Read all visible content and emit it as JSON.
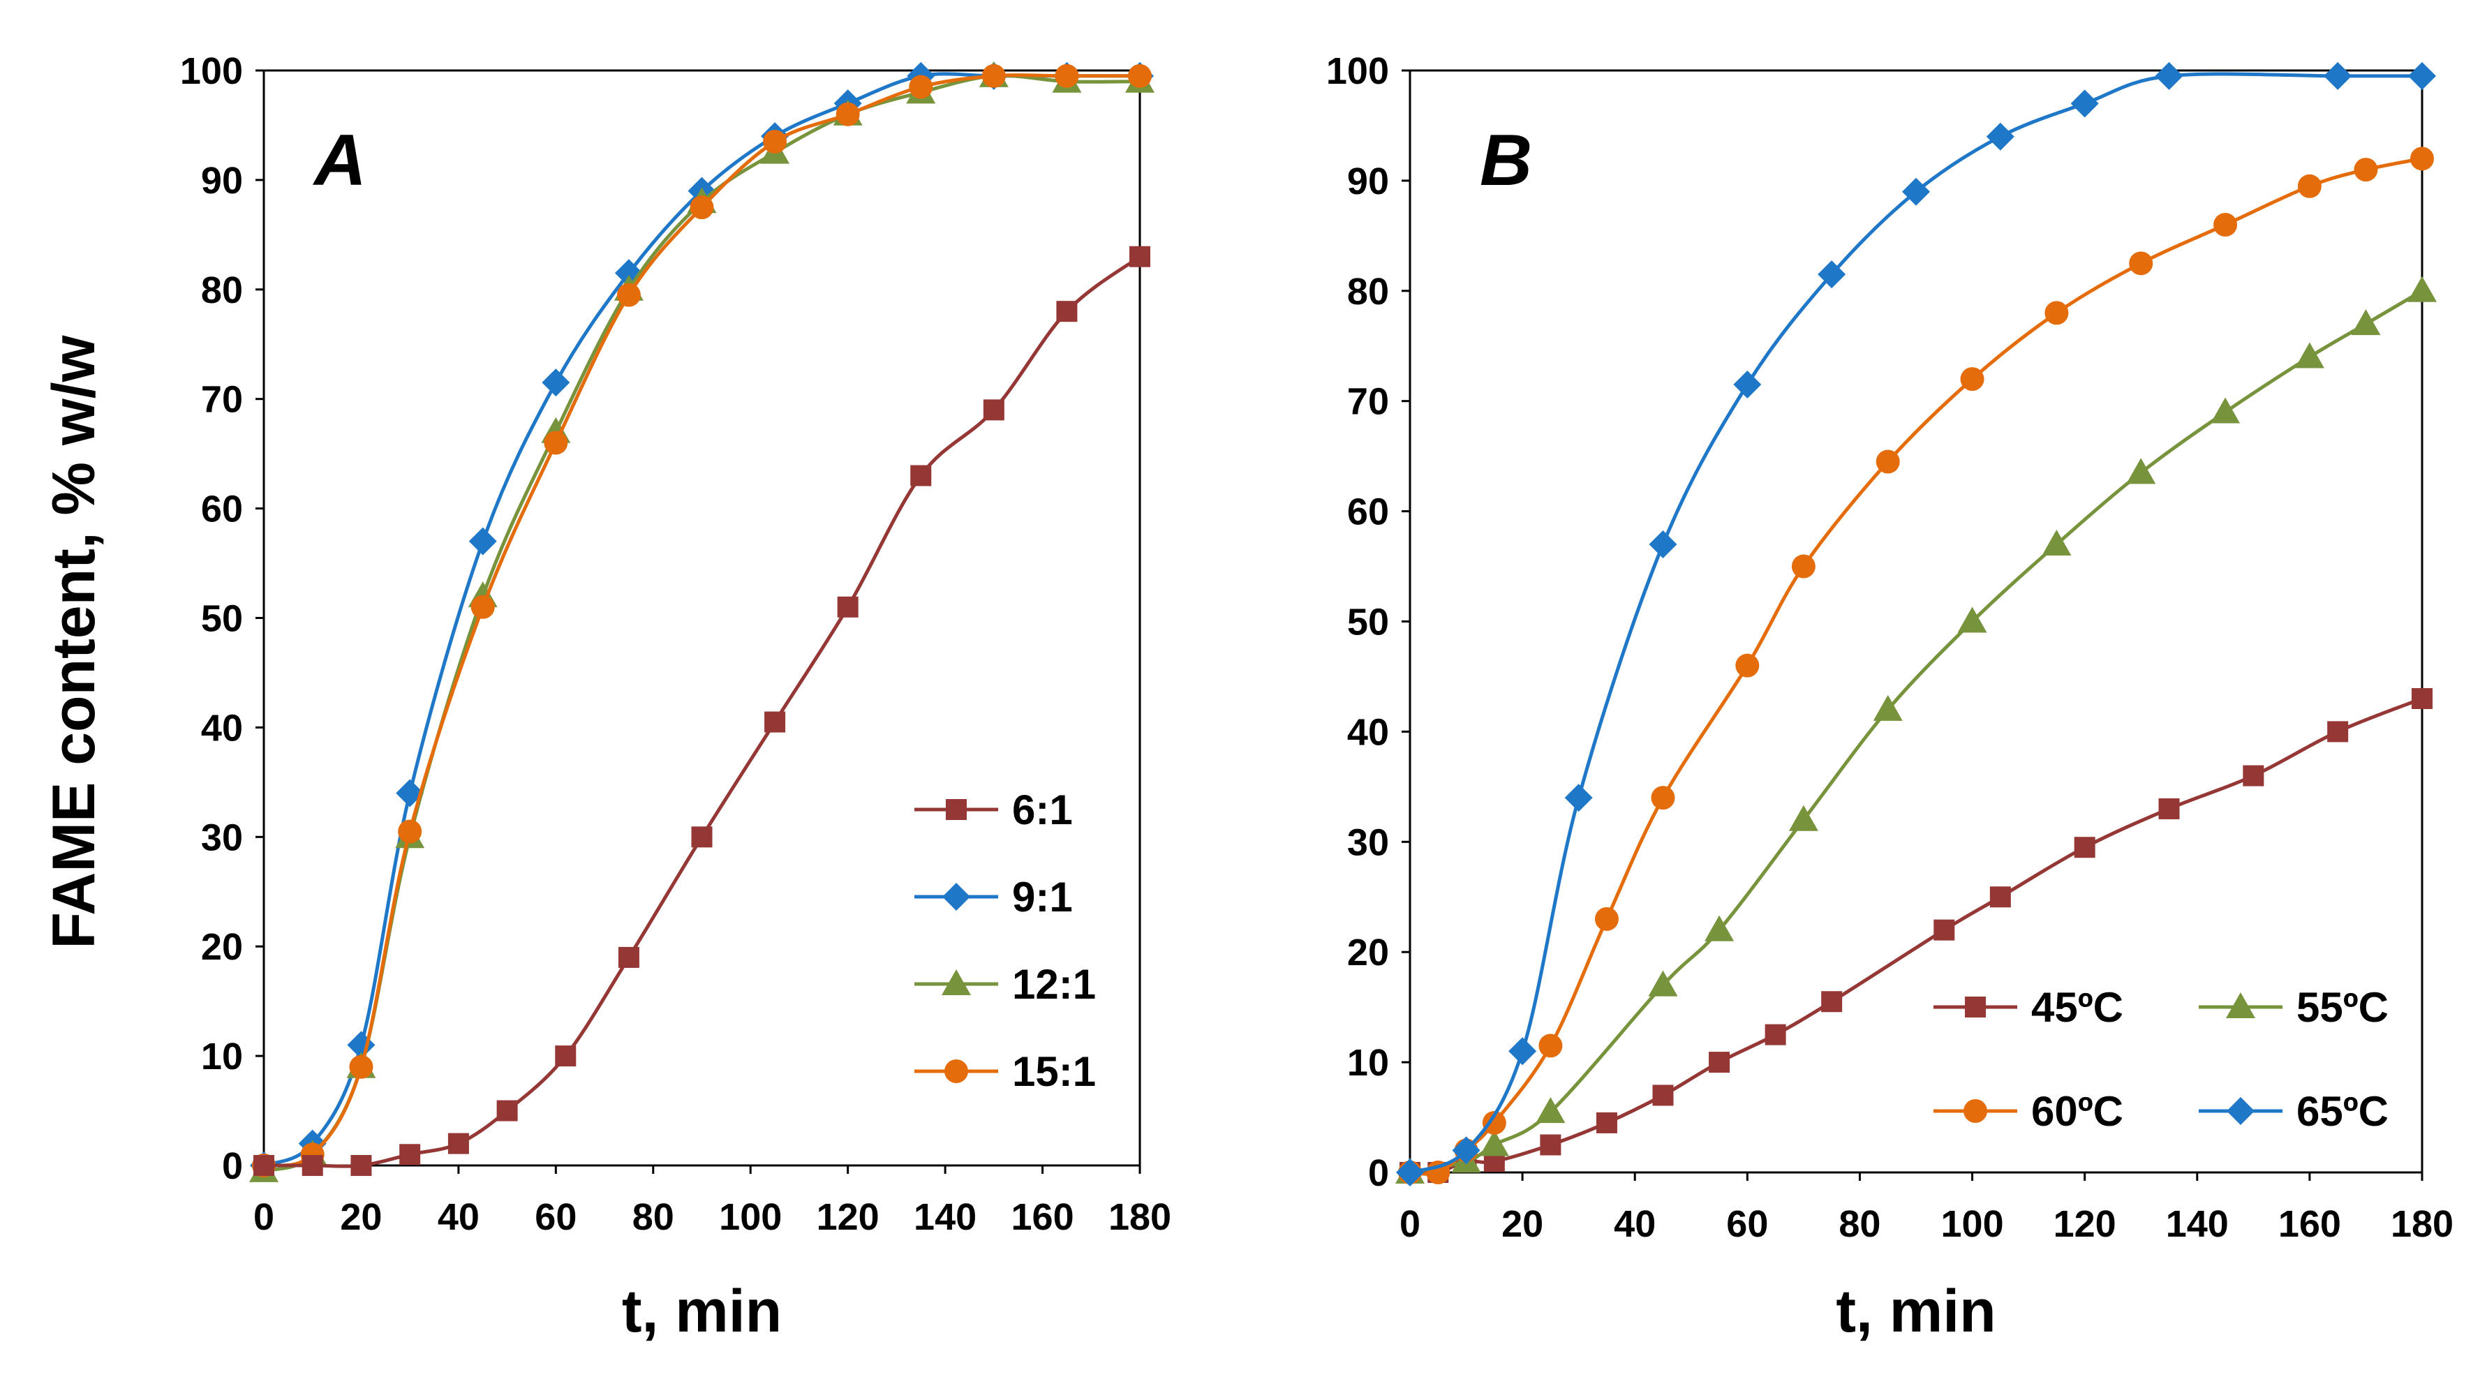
{
  "figure": {
    "ylabel": "FAME content, % w/w"
  },
  "chart_data": [
    {
      "type": "line",
      "panel_label": "A",
      "xlabel": "t, min",
      "ylabel": "FAME content, % w/w",
      "xlim": [
        0,
        180
      ],
      "ylim": [
        0,
        100
      ],
      "xticks": [
        "0",
        "20",
        "40",
        "60",
        "80",
        "100",
        "120",
        "140",
        "160",
        "180"
      ],
      "yticks": [
        "0",
        "10",
        "20",
        "30",
        "40",
        "50",
        "60",
        "70",
        "80",
        "90",
        "100"
      ],
      "grid": false,
      "legend_position": "bottom-right",
      "legend_layout": "single-column",
      "series": [
        {
          "name": "9:1",
          "color": "#1F77C8",
          "marker": "diamond",
          "x": [
            0,
            10,
            20,
            30,
            45,
            60,
            75,
            90,
            105,
            120,
            135,
            150,
            165,
            180
          ],
          "y": [
            0,
            2,
            11,
            34,
            57,
            71.5,
            81.5,
            89,
            94,
            97,
            99.5,
            99.5,
            99.5,
            99.5
          ]
        },
        {
          "name": "12:1",
          "color": "#77933C",
          "marker": "triangle",
          "x": [
            0,
            10,
            20,
            30,
            45,
            60,
            75,
            90,
            105,
            120,
            135,
            150,
            165,
            180
          ],
          "y": [
            -0.5,
            1,
            9,
            30,
            52,
            67,
            80,
            88,
            92.5,
            96,
            98,
            99.5,
            99,
            99
          ]
        },
        {
          "name": "15:1",
          "color": "#E46C0A",
          "marker": "circle",
          "x": [
            0,
            10,
            20,
            30,
            45,
            60,
            75,
            90,
            105,
            120,
            135,
            150,
            165,
            180
          ],
          "y": [
            0,
            1,
            9,
            30.5,
            51,
            66,
            79.5,
            87.5,
            93.5,
            96,
            98.5,
            99.5,
            99.5,
            99.5
          ]
        },
        {
          "name": "6:1",
          "color": "#953735",
          "marker": "square",
          "x": [
            0,
            10,
            20,
            30,
            40,
            50,
            62,
            75,
            90,
            105,
            120,
            135,
            150,
            165,
            180
          ],
          "y": [
            0,
            0,
            0,
            1,
            2,
            5,
            10,
            19,
            30,
            40.5,
            51,
            63,
            69,
            78,
            83
          ]
        }
      ],
      "legend_order": [
        "6:1",
        "9:1",
        "12:1",
        "15:1"
      ]
    },
    {
      "type": "line",
      "panel_label": "B",
      "xlabel": "t, min",
      "ylabel": "FAME content, % w/w",
      "xlim": [
        0,
        180
      ],
      "ylim": [
        0,
        100
      ],
      "xticks": [
        "0",
        "20",
        "40",
        "60",
        "80",
        "100",
        "120",
        "140",
        "160",
        "180"
      ],
      "yticks": [
        "0",
        "10",
        "20",
        "30",
        "40",
        "50",
        "60",
        "70",
        "80",
        "90",
        "100"
      ],
      "grid": false,
      "legend_position": "bottom-right",
      "legend_layout": "two-column",
      "series": [
        {
          "name": "45ºC",
          "color": "#953735",
          "marker": "square",
          "x": [
            0,
            5,
            10,
            15,
            25,
            35,
            45,
            55,
            65,
            75,
            95,
            105,
            120,
            135,
            150,
            165,
            180
          ],
          "y": [
            0,
            0,
            1,
            1,
            2.5,
            4.5,
            7,
            10,
            12.5,
            15.5,
            22,
            25,
            29.5,
            33,
            36,
            40,
            43
          ]
        },
        {
          "name": "55ºC",
          "color": "#77933C",
          "marker": "triangle",
          "x": [
            0,
            10,
            15,
            25,
            45,
            55,
            70,
            85,
            100,
            115,
            130,
            145,
            160,
            170,
            180
          ],
          "y": [
            0,
            1,
            2.5,
            5.5,
            17,
            22,
            32,
            42,
            50,
            57,
            63.5,
            69,
            74,
            77,
            80
          ]
        },
        {
          "name": "60ºC",
          "color": "#E46C0A",
          "marker": "circle",
          "x": [
            0,
            5,
            10,
            15,
            25,
            35,
            45,
            60,
            70,
            85,
            100,
            115,
            130,
            145,
            160,
            170,
            180
          ],
          "y": [
            0,
            0,
            2,
            4.5,
            11.5,
            23,
            34,
            46,
            55,
            64.5,
            72,
            78,
            82.5,
            86,
            89.5,
            91,
            92
          ]
        },
        {
          "name": "65ºC",
          "color": "#1F77C8",
          "marker": "diamond",
          "x": [
            0,
            10,
            20,
            30,
            45,
            60,
            75,
            90,
            105,
            120,
            135,
            165,
            180
          ],
          "y": [
            0,
            2,
            11,
            34,
            57,
            71.5,
            81.5,
            89,
            94,
            97,
            99.5,
            99.5,
            99.5
          ]
        }
      ],
      "legend_order": [
        "45ºC",
        "55ºC",
        "60ºC",
        "65ºC"
      ]
    }
  ]
}
